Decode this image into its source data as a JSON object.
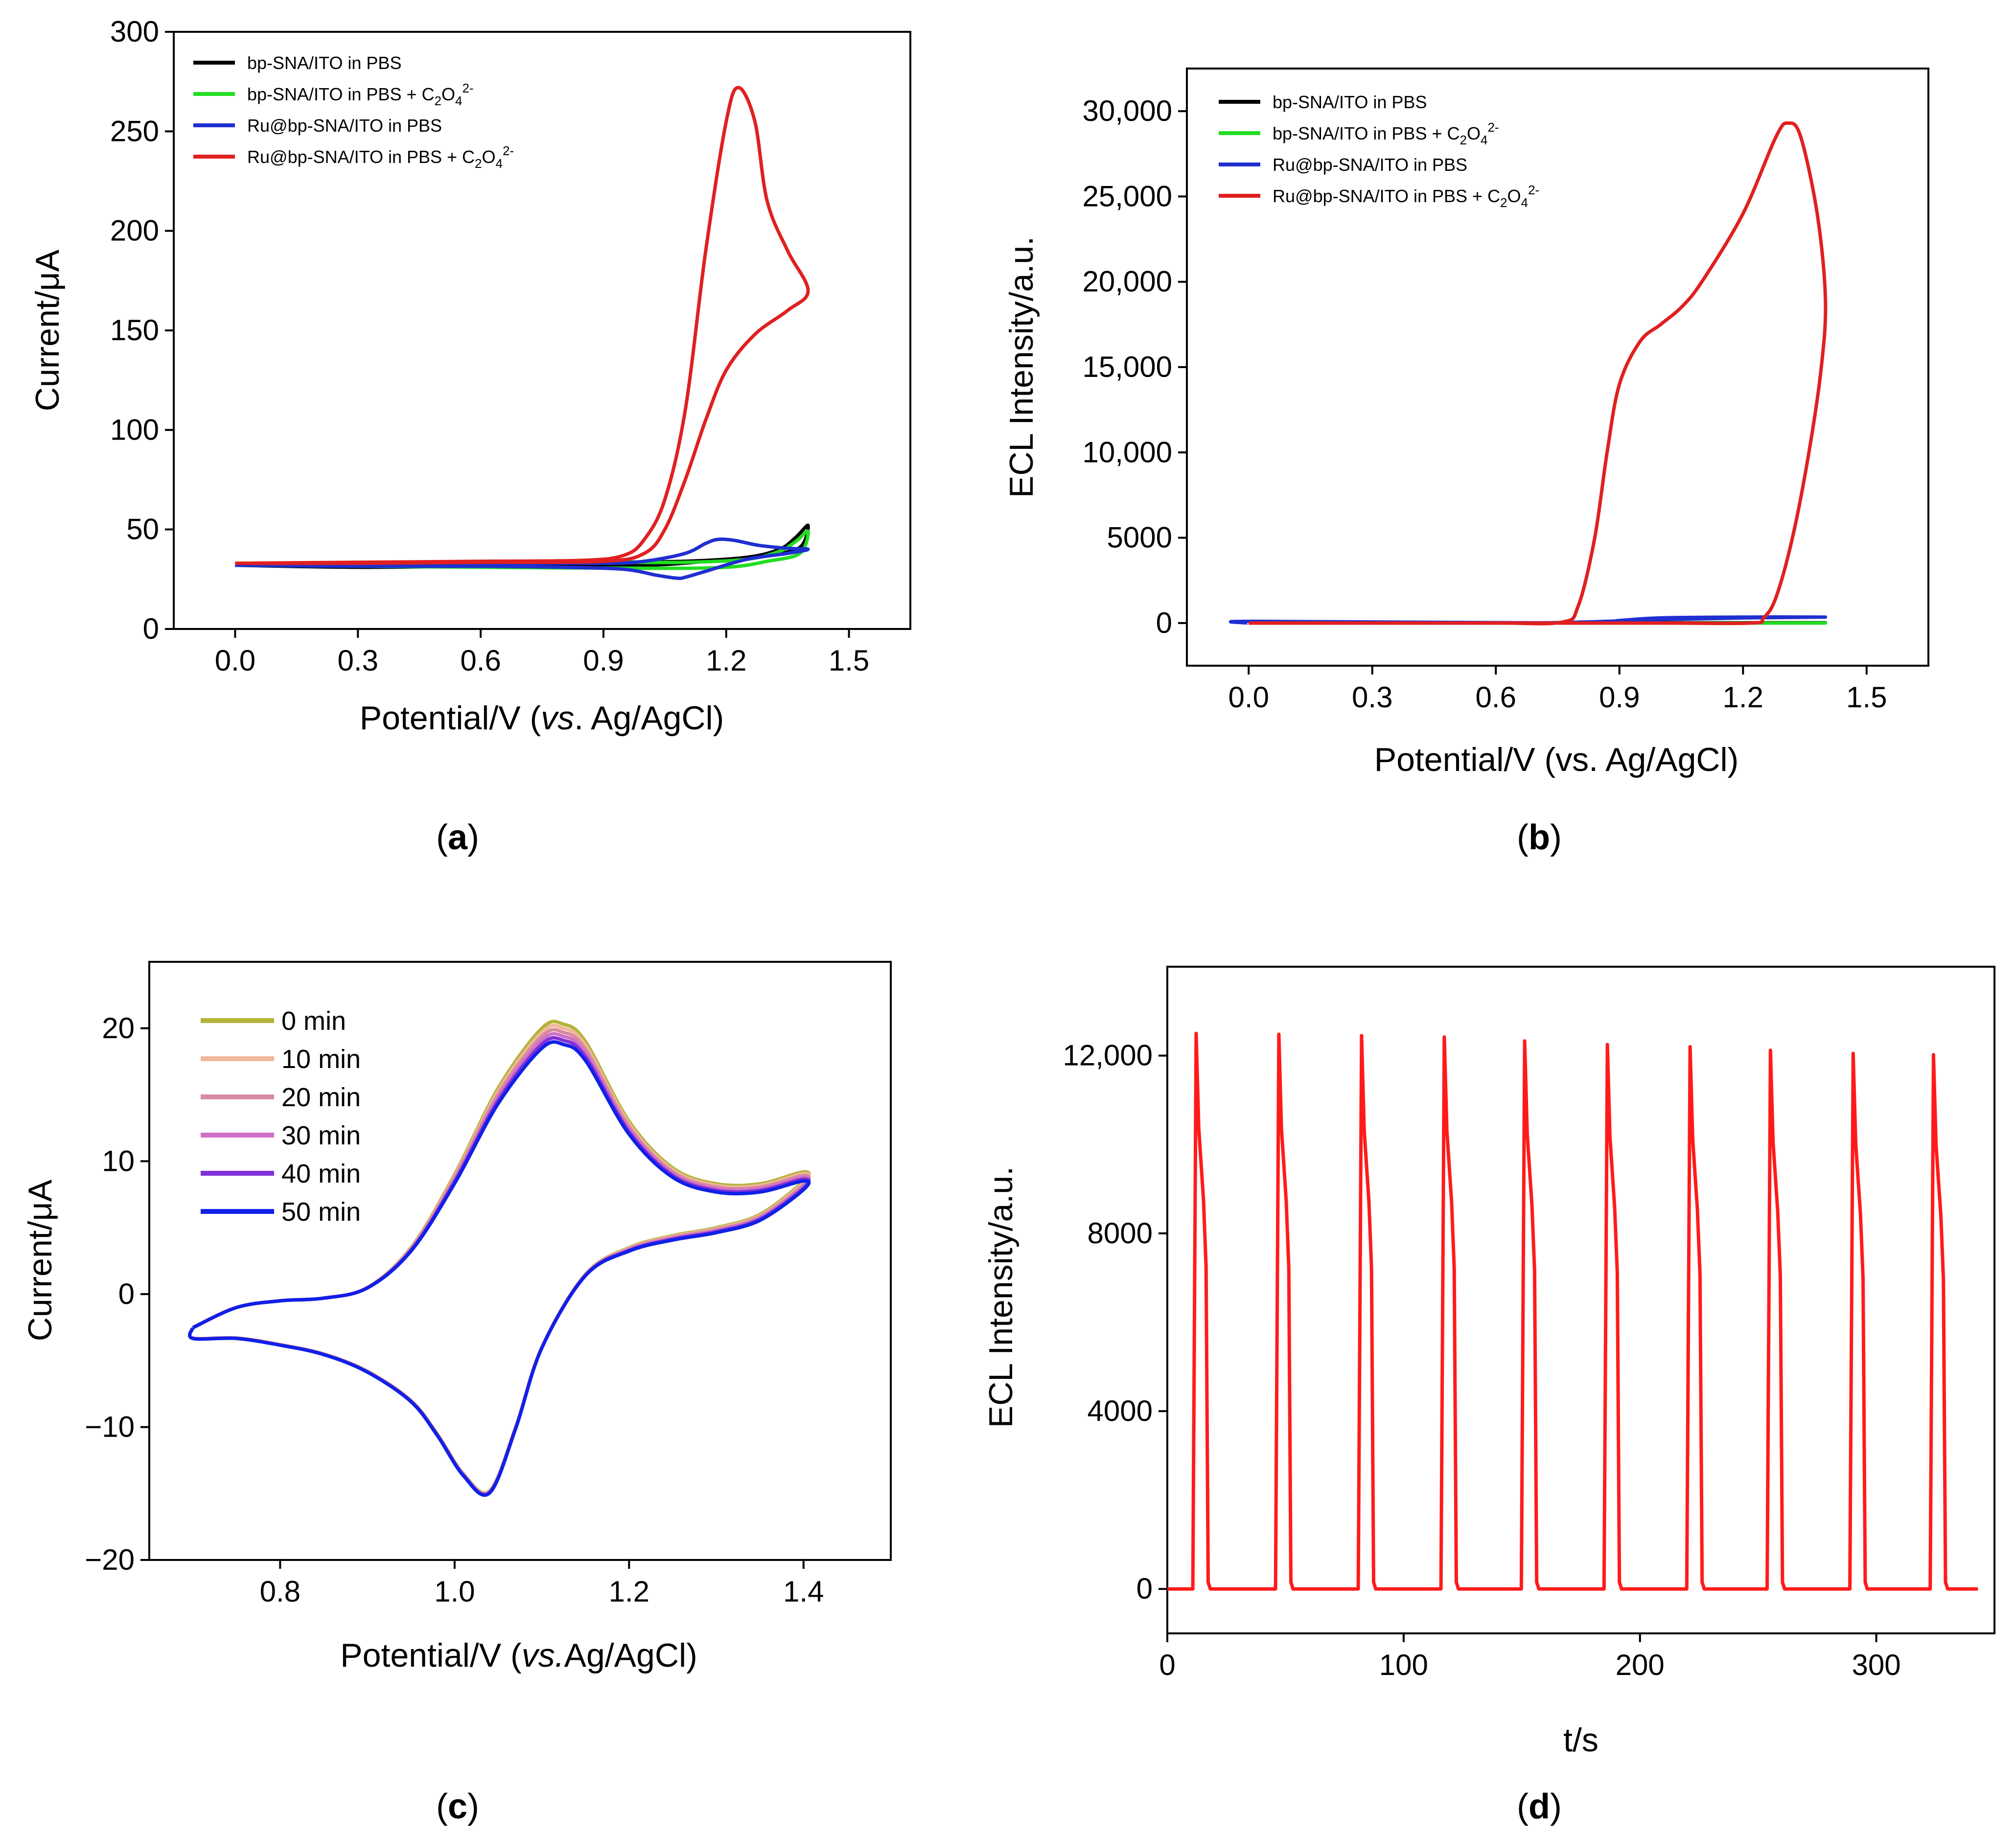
{
  "chart_data": [
    {
      "id": "a",
      "type": "line",
      "caption": "a",
      "xlabel_main": "Potential/V (",
      "xlabel_italic": "vs",
      "xlabel_tail": ". Ag/AgCl)",
      "ylabel": "Current/μA",
      "xlim": [
        -0.15,
        1.65
      ],
      "ylim": [
        0,
        300
      ],
      "xticks": [
        "0.0",
        "0.3",
        "0.6",
        "0.9",
        "1.2",
        "1.5"
      ],
      "xtick_values": [
        0.0,
        0.3,
        0.6,
        0.9,
        1.2,
        1.5
      ],
      "yticks": [
        "0",
        "50",
        "100",
        "150",
        "200",
        "250",
        "300"
      ],
      "ytick_values": [
        0,
        50,
        100,
        150,
        200,
        250,
        300
      ],
      "legend_location": "top-left",
      "series": [
        {
          "name": "bp-SNA/ITO in PBS",
          "color": "#000000",
          "label_base": "bp-SNA/ITO in PBS",
          "label_sub": "",
          "label_mid": "",
          "label_sup": "",
          "x": [
            0,
            0.3,
            0.6,
            0.9,
            1.1,
            1.25,
            1.33,
            1.37,
            1.4,
            1.38,
            1.3,
            1.2,
            1.0,
            0.6,
            0.3,
            0
          ],
          "y": [
            32,
            32.5,
            33,
            33.5,
            34,
            36,
            40,
            46,
            52,
            41,
            37,
            35,
            32,
            31.5,
            31,
            32
          ]
        },
        {
          "name": "bp-SNA/ITO in PBS + C2O4 2-",
          "color": "#22dd22",
          "label_base": "bp-SNA/ITO in PBS + C",
          "label_sub": "2",
          "label_mid": "O",
          "label_sub2": "4",
          "label_sup": "2-",
          "x": [
            0,
            0.3,
            0.6,
            0.9,
            1.1,
            1.25,
            1.33,
            1.37,
            1.4,
            1.38,
            1.3,
            1.2,
            1.0,
            0.6,
            0.3,
            0
          ],
          "y": [
            32,
            32.5,
            33,
            33.5,
            33.5,
            35,
            39,
            44,
            49,
            38,
            34,
            31,
            30.5,
            31,
            31.5,
            32
          ]
        },
        {
          "name": "Ru@bp-SNA/ITO in PBS",
          "color": "#1f2fd0",
          "label_base": "Ru@bp-SNA/ITO in PBS",
          "label_sub": "",
          "label_mid": "",
          "label_sup": "",
          "x": [
            0,
            0.3,
            0.6,
            0.9,
            1.0,
            1.1,
            1.15,
            1.18,
            1.22,
            1.28,
            1.35,
            1.4,
            1.35,
            1.25,
            1.15,
            1.1,
            1.08,
            1.03,
            0.95,
            0.8,
            0.6,
            0.3,
            0
          ],
          "y": [
            32,
            32.5,
            33,
            33,
            34,
            38,
            43,
            45,
            44.5,
            42,
            40.5,
            40,
            38,
            35,
            29,
            26,
            25.5,
            27,
            30,
            31,
            31.5,
            31.5,
            32
          ]
        },
        {
          "name": "Ru@bp-SNA/ITO in PBS + C2O4 2-",
          "color": "#e02020",
          "label_base": "Ru@bp-SNA/ITO in PBS + C",
          "label_sub": "2",
          "label_mid": "O",
          "label_sub2": "4",
          "label_sup": "2-",
          "x": [
            0,
            0.3,
            0.6,
            0.85,
            0.95,
            1.0,
            1.05,
            1.1,
            1.15,
            1.2,
            1.23,
            1.27,
            1.3,
            1.35,
            1.4,
            1.35,
            1.27,
            1.2,
            1.15,
            1.1,
            1.05,
            1.0,
            0.9,
            0.6,
            0.3,
            0
          ],
          "y": [
            33,
            33.5,
            34,
            34.5,
            37,
            45,
            65,
            110,
            190,
            255,
            272,
            255,
            215,
            190,
            170,
            160,
            148,
            130,
            105,
            75,
            50,
            38,
            34,
            33.5,
            33,
            33
          ]
        }
      ]
    },
    {
      "id": "b",
      "type": "line",
      "caption": "b",
      "xlabel": "Potential/V (vs. Ag/AgCl)",
      "ylabel": "ECL Intensity/a.u.",
      "xlim": [
        -0.15,
        1.65
      ],
      "ylim": [
        -2500,
        32500
      ],
      "xticks": [
        "0.0",
        "0.3",
        "0.6",
        "0.9",
        "1.2",
        "1.5"
      ],
      "xtick_values": [
        0.0,
        0.3,
        0.6,
        0.9,
        1.2,
        1.5
      ],
      "yticks": [
        "0",
        "5000",
        "10,000",
        "15,000",
        "20,000",
        "25,000",
        "30,000"
      ],
      "ytick_values": [
        0,
        5000,
        10000,
        15000,
        20000,
        25000,
        30000
      ],
      "legend_location": "top-left",
      "series": [
        {
          "name": "bp-SNA/ITO in PBS",
          "color": "#000000",
          "label_base": "bp-SNA/ITO in PBS",
          "label_sub": "",
          "label_mid": "",
          "label_sup": "",
          "x": [
            0,
            1.4,
            0
          ],
          "y": [
            0,
            20,
            0
          ]
        },
        {
          "name": "bp-SNA/ITO in PBS + C2O4 2-",
          "color": "#22dd22",
          "label_base": "bp-SNA/ITO in PBS + C",
          "label_sub": "2",
          "label_mid": "O",
          "label_sub2": "4",
          "label_sup": "2-",
          "x": [
            0,
            1.4,
            0
          ],
          "y": [
            0,
            0,
            0
          ]
        },
        {
          "name": "Ru@bp-SNA/ITO in PBS",
          "color": "#1f2fd0",
          "label_base": "Ru@bp-SNA/ITO in PBS",
          "label_sub": "",
          "label_mid": "",
          "label_sup": "",
          "x": [
            0,
            0.02,
            0.8,
            0.9,
            1.0,
            1.2,
            1.4,
            1.2,
            1.0,
            0.8,
            0.6,
            0
          ],
          "y": [
            0,
            100,
            0,
            150,
            300,
            350,
            350,
            300,
            200,
            50,
            0,
            0
          ]
        },
        {
          "name": "Ru@bp-SNA/ITO in PBS + C2O4 2-",
          "color": "#e02020",
          "label_base": "Ru@bp-SNA/ITO in PBS + C",
          "label_sub": "2",
          "label_mid": "O",
          "label_sub2": "4",
          "label_sup": "2-",
          "x": [
            0,
            0.3,
            0.6,
            0.76,
            0.8,
            0.84,
            0.87,
            0.9,
            0.95,
            1.0,
            1.05,
            1.1,
            1.2,
            1.28,
            1.31,
            1.34,
            1.38,
            1.4,
            1.39,
            1.36,
            1.32,
            1.28,
            1.25,
            1.22,
            1.0,
            0.6,
            0.3,
            0
          ],
          "y": [
            0,
            0,
            0,
            50,
            1000,
            5000,
            10000,
            14000,
            16500,
            17500,
            18500,
            20000,
            24000,
            28500,
            29300,
            28500,
            24000,
            19000,
            15000,
            10000,
            5000,
            1500,
            300,
            0,
            0,
            0,
            0,
            0
          ]
        }
      ]
    },
    {
      "id": "c",
      "type": "line",
      "caption": "c",
      "xlabel_main": "Potential/V (",
      "xlabel_italic": "vs.",
      "xlabel_tail": "Ag/AgCl)",
      "ylabel": "Current/μA",
      "xlim": [
        0.65,
        1.5
      ],
      "ylim": [
        -20,
        25
      ],
      "xticks": [
        "0.8",
        "1.0",
        "1.2",
        "1.4"
      ],
      "xtick_values": [
        0.8,
        1.0,
        1.2,
        1.4
      ],
      "yticks": [
        "−20",
        "−10",
        "0",
        "10",
        "20"
      ],
      "ytick_values": [
        -20,
        -10,
        0,
        10,
        20
      ],
      "legend_location": "top-left",
      "series": [
        {
          "name": "0 min",
          "color": "#b5b33a",
          "scale": 1.0
        },
        {
          "name": "10 min",
          "color": "#f0b89a",
          "scale": 0.985
        },
        {
          "name": "20 min",
          "color": "#d88aa0",
          "scale": 0.97
        },
        {
          "name": "30 min",
          "color": "#d070c8",
          "scale": 0.955
        },
        {
          "name": "40 min",
          "color": "#8030d8",
          "scale": 0.94
        },
        {
          "name": "50 min",
          "color": "#1020e8",
          "scale": 0.925
        }
      ],
      "base_curve": {
        "x": [
          0.7,
          0.75,
          0.8,
          0.85,
          0.9,
          0.95,
          1.0,
          1.05,
          1.1,
          1.125,
          1.15,
          1.2,
          1.25,
          1.3,
          1.35,
          1.4,
          1.4,
          1.35,
          1.3,
          1.25,
          1.2,
          1.15,
          1.1,
          1.07,
          1.04,
          1.01,
          0.98,
          0.95,
          0.9,
          0.85,
          0.8,
          0.75,
          0.7,
          0.7
        ],
        "y": [
          -2.5,
          -1.0,
          -0.5,
          -0.3,
          0.5,
          3.5,
          9.0,
          15.5,
          20.0,
          20.3,
          19.0,
          13.0,
          9.5,
          8.3,
          8.3,
          9.2,
          8.5,
          6.0,
          5.0,
          4.4,
          3.5,
          1.5,
          -4.0,
          -10.0,
          -14.8,
          -13.5,
          -10.5,
          -8.0,
          -5.8,
          -4.5,
          -3.8,
          -3.3,
          -3.3,
          -2.5
        ]
      }
    },
    {
      "id": "d",
      "type": "line",
      "caption": "d",
      "xlabel": "t/s",
      "ylabel": "ECL Intensity/a.u.",
      "xlim": [
        0,
        350
      ],
      "ylim": [
        -1000,
        14000
      ],
      "xticks": [
        "0",
        "100",
        "200",
        "300"
      ],
      "xtick_values": [
        0,
        100,
        200,
        300
      ],
      "yticks": [
        "0",
        "4000",
        "8000",
        "12,000"
      ],
      "ytick_values": [
        0,
        4000,
        8000,
        12000
      ],
      "series": [
        {
          "name": "ECL",
          "color": "#ff1a1a",
          "pulse_starts": [
            11,
            46,
            81,
            116,
            150,
            185,
            220,
            254,
            289,
            323
          ],
          "pulse_peaks": [
            12500,
            12480,
            12450,
            12420,
            12330,
            12250,
            12200,
            12120,
            12050,
            12020
          ],
          "t_end": 343
        }
      ]
    }
  ]
}
